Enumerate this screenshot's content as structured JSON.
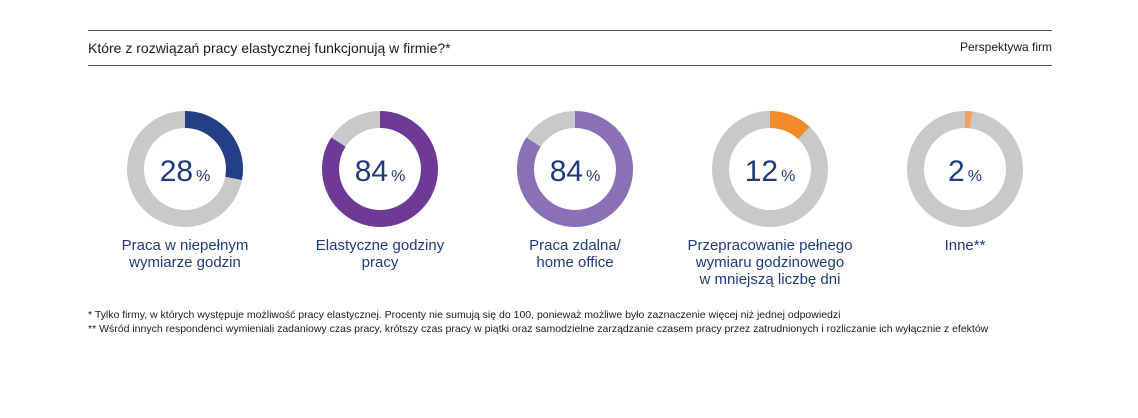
{
  "header": {
    "title": "Które z rozwiązań pracy elastycznej funkcjonują w firmie?*",
    "perspective": "Perspektywa firm"
  },
  "chart_data": {
    "type": "pie",
    "variant": "donut",
    "title": "Które z rozwiązań pracy elastycznej funkcjonują w firmie?*",
    "unit": "%",
    "track_color": "#c9c9c9",
    "items": [
      {
        "label": "Praca w niepełnym\nwymiarze godzin",
        "value": 28,
        "value_text": "28",
        "color": "#243f86"
      },
      {
        "label": "Elastyczne godziny\npracy",
        "value": 84,
        "value_text": "84",
        "color": "#6f3a96"
      },
      {
        "label": "Praca zdalna/\nhome office",
        "value": 84,
        "value_text": "84",
        "color": "#8a70b7"
      },
      {
        "label": "Przepracowanie pełnego\nwymiaru godzinowego\nw mniejszą liczbę dni",
        "value": 12,
        "value_text": "12",
        "color": "#f28c28"
      },
      {
        "label": "Inne**",
        "value": 2,
        "value_text": "2",
        "color": "#f4a15e"
      }
    ]
  },
  "footnotes": [
    "* Tylko firmy, w których występuje możliwość pracy elastycznej. Procenty nie sumują się do 100, ponieważ możliwe było zaznaczenie więcej niż jednej odpowiedzi",
    "** Wśród innych respondenci wymieniali zadaniowy czas pracy, krótszy czas pracy w piątki oraz samodzielne zarządzanie czasem pracy przez zatrudnionych i rozliczanie ich wyłącznie z efektów"
  ]
}
